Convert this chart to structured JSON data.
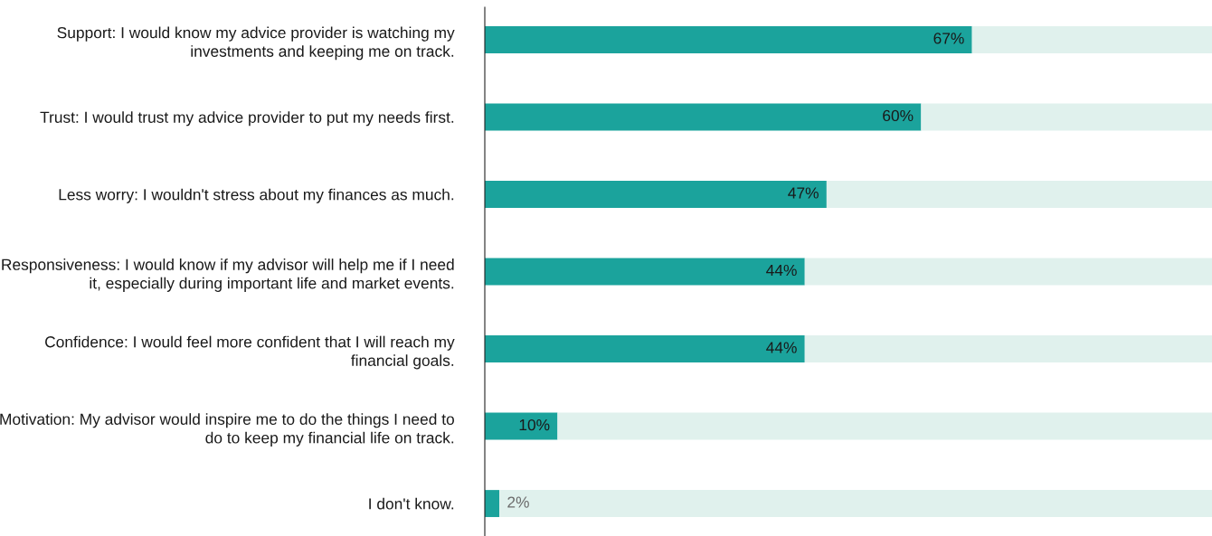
{
  "chart_data": {
    "type": "bar",
    "orientation": "horizontal",
    "stacked": true,
    "categories": [
      "Support: I would know my advice provider is watching my investments and keeping me on track.",
      "Trust: I would trust my advice provider to put my needs first.",
      "Less worry: I wouldn't stress about my finances as much.",
      "Responsiveness: I would know if my advisor will help me if I need it, especially during important life and market events.",
      "Confidence: I would feel more confident that I will reach my financial goals.",
      "Motivation: My advisor would inspire me to do the things I need to do to keep my financial life on track.",
      "I don't know."
    ],
    "series": [
      {
        "color": "#1ba39c",
        "values": [
          67,
          60,
          47,
          44,
          44,
          10,
          2
        ],
        "value_labels": [
          "67%",
          "60%",
          "47%",
          "44%",
          "44%",
          "10%",
          "2%"
        ]
      },
      {
        "color": "#e0f1ed",
        "values": [
          33,
          40,
          53,
          56,
          56,
          90,
          98
        ]
      }
    ],
    "xlim": [
      0,
      100
    ],
    "tick_labels": "y"
  }
}
